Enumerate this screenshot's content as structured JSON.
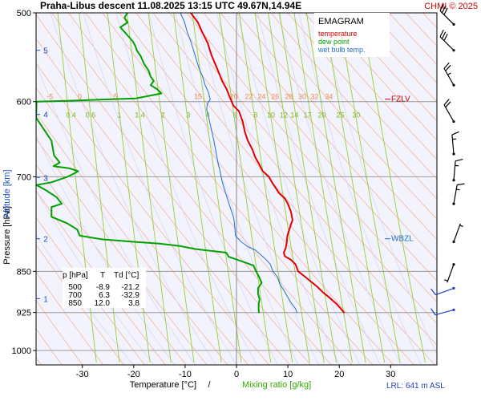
{
  "header": {
    "title": "Praha-Libus   descent   11.08.2025 13:15 UTC  49.67N,14.94E",
    "copyright": "CHMI © 2025"
  },
  "legend": {
    "title": "EMAGRAM",
    "items": [
      {
        "label": "temperature",
        "color": "#e00000"
      },
      {
        "label": "dew point",
        "color": "#00a000"
      },
      {
        "label": "wet bulb temp.",
        "color": "#1f6fd0"
      }
    ]
  },
  "levels": {
    "FZLV": {
      "label": "FZLV",
      "pressure_hpa": 597
    },
    "WBZL": {
      "label": "WBZL",
      "pressure_hpa": 795
    }
  },
  "table": {
    "headers": [
      "p [hPa]",
      "T",
      "Td [°C]"
    ],
    "rows": [
      [
        "500",
        "-8.9",
        "-21.2"
      ],
      [
        "700",
        "6.3",
        "-32.9"
      ],
      [
        "850",
        "12.0",
        "3.8"
      ]
    ]
  },
  "lrl": "LRL: 641 m ASL",
  "colors": {
    "plot_bg": "#f3f3fd",
    "temperature": "#e00000",
    "dewpoint": "#00a000",
    "wetbulb": "#1f6fd0",
    "dry_adiabat": "#f4a37a",
    "mixing_ratio": "#99cc33",
    "isotherm": "#cccccc",
    "isobar": "#999999"
  },
  "chart_data": {
    "type": "line",
    "xlabel": "Temperature [°C]",
    "xlabel_extra": "Mixing ratio [g/kg]",
    "ylabel": "Pressure [hPa]",
    "ylabel_extra": "Altitude [km]",
    "xlim": [
      -39,
      39
    ],
    "ylim": [
      1030,
      500
    ],
    "y_scale": "log",
    "x_ticks": [
      -30,
      -20,
      -10,
      0,
      10,
      20,
      30
    ],
    "pressure_ticks": [
      500,
      600,
      700,
      850,
      925,
      1000
    ],
    "altitude_ticks": [
      {
        "km": 1,
        "p": 899
      },
      {
        "km": 2,
        "p": 795
      },
      {
        "km": 3,
        "p": 701
      },
      {
        "km": 4,
        "p": 616
      },
      {
        "km": 5,
        "p": 540
      }
    ],
    "dry_adiabat_labels": [
      {
        "label": "-5",
        "x": -36.3
      },
      {
        "label": "0",
        "x": -30.5
      },
      {
        "label": "5",
        "x": -23.5
      },
      {
        "label": "15",
        "x": -7.5
      },
      {
        "label": "20",
        "x": -0.5
      },
      {
        "label": "22",
        "x": 2.4
      },
      {
        "label": "24",
        "x": 4.9
      },
      {
        "label": "26",
        "x": 7.5
      },
      {
        "label": "28",
        "x": 10.2
      },
      {
        "label": "30",
        "x": 12.8
      },
      {
        "label": "32",
        "x": 15.2
      },
      {
        "label": "34",
        "x": 18
      }
    ],
    "mixing_ratio_labels": [
      {
        "label": "0.4",
        "x": -32.2
      },
      {
        "label": "0.6",
        "x": -28.4
      },
      {
        "label": "1",
        "x": -22.8
      },
      {
        "label": "1.4",
        "x": -18.8
      },
      {
        "label": "2",
        "x": -14.3
      },
      {
        "label": "3",
        "x": -9.4
      },
      {
        "label": "4",
        "x": -5.6
      },
      {
        "label": "6",
        "x": -0.3
      },
      {
        "label": "8",
        "x": 3.7
      },
      {
        "label": "10",
        "x": 6.7
      },
      {
        "label": "12",
        "x": 9.2
      },
      {
        "label": "14",
        "x": 11.3
      },
      {
        "label": "17",
        "x": 13.8
      },
      {
        "label": "20",
        "x": 16.6
      },
      {
        "label": "25",
        "x": 20.2
      },
      {
        "label": "30",
        "x": 23.3
      }
    ],
    "series": [
      {
        "name": "temperature",
        "points": [
          [
            -8.9,
            500
          ],
          [
            -7.5,
            510
          ],
          [
            -6.7,
            520
          ],
          [
            -5.6,
            532
          ],
          [
            -4.9,
            545
          ],
          [
            -3.8,
            560
          ],
          [
            -2.8,
            575
          ],
          [
            -1.9,
            585
          ],
          [
            -1.4,
            593
          ],
          [
            -0.6,
            605
          ],
          [
            0.5,
            612
          ],
          [
            1.2,
            625
          ],
          [
            1.6,
            638
          ],
          [
            2.2,
            650
          ],
          [
            3.1,
            662
          ],
          [
            3.6,
            672
          ],
          [
            4.4,
            682
          ],
          [
            5.1,
            692
          ],
          [
            6.3,
            700
          ],
          [
            6.9,
            708
          ],
          [
            7.6,
            716
          ],
          [
            8.3,
            724
          ],
          [
            9.4,
            732
          ],
          [
            10.0,
            740
          ],
          [
            10.6,
            752
          ],
          [
            10.9,
            765
          ],
          [
            10.6,
            772
          ],
          [
            10.3,
            780
          ],
          [
            9.9,
            790
          ],
          [
            9.8,
            800
          ],
          [
            9.6,
            810
          ],
          [
            9.2,
            818
          ],
          [
            9.4,
            824
          ],
          [
            10.6,
            830
          ],
          [
            11.5,
            838
          ],
          [
            12.0,
            850
          ],
          [
            13.4,
            860
          ],
          [
            14.5,
            868
          ],
          [
            15.8,
            878
          ],
          [
            16.9,
            888
          ],
          [
            18.2,
            898
          ],
          [
            19.6,
            910
          ],
          [
            20.5,
            920
          ],
          [
            21.0,
            926
          ]
        ]
      },
      {
        "name": "dew point",
        "points": [
          [
            -21.2,
            500
          ],
          [
            -21.8,
            505
          ],
          [
            -21.2,
            510
          ],
          [
            -22.6,
            515
          ],
          [
            -21.8,
            520
          ],
          [
            -21.0,
            525
          ],
          [
            -20.2,
            530
          ],
          [
            -19.7,
            535
          ],
          [
            -19.4,
            540
          ],
          [
            -18.6,
            547
          ],
          [
            -18.0,
            555
          ],
          [
            -17.1,
            563
          ],
          [
            -16.7,
            570
          ],
          [
            -16.1,
            575
          ],
          [
            -16.7,
            580
          ],
          [
            -15.4,
            585
          ],
          [
            -14.6,
            590
          ],
          [
            -19.6,
            596
          ],
          [
            -33,
            599
          ],
          [
            -38.9,
            600
          ],
          [
            -39,
            620
          ],
          [
            -36,
            650
          ],
          [
            -35.5,
            670
          ],
          [
            -34.4,
            680
          ],
          [
            -35.6,
            685
          ],
          [
            -32.5,
            688
          ],
          [
            -30.8,
            692
          ],
          [
            -31.5,
            695
          ],
          [
            -32.9,
            700
          ],
          [
            -36,
            708
          ],
          [
            -38.9,
            712
          ],
          [
            -37,
            720
          ],
          [
            -35,
            730
          ],
          [
            -34,
            740
          ],
          [
            -36,
            745
          ],
          [
            -36,
            760
          ],
          [
            -33,
            770
          ],
          [
            -31,
            780
          ],
          [
            -30.5,
            790
          ],
          [
            -26,
            796
          ],
          [
            -20,
            800
          ],
          [
            -15,
            803
          ],
          [
            -11,
            807
          ],
          [
            -8,
            812
          ],
          [
            -2,
            818
          ],
          [
            -1.5,
            825
          ],
          [
            0.2,
            830
          ],
          [
            3.3,
            840
          ],
          [
            3.8,
            850
          ],
          [
            4.4,
            860
          ],
          [
            4.9,
            870
          ],
          [
            4.2,
            880
          ],
          [
            4.2,
            890
          ],
          [
            4.5,
            900
          ],
          [
            4.3,
            910
          ],
          [
            4.3,
            920
          ],
          [
            4.4,
            926
          ]
        ]
      },
      {
        "name": "wet bulb temp.",
        "points": [
          [
            -10.9,
            500
          ],
          [
            -10.1,
            510
          ],
          [
            -9.6,
            520
          ],
          [
            -8.9,
            530
          ],
          [
            -8.1,
            545
          ],
          [
            -7.3,
            560
          ],
          [
            -6.6,
            570
          ],
          [
            -6.1,
            580
          ],
          [
            -5.5,
            588
          ],
          [
            -5.1,
            597
          ],
          [
            -5.7,
            603
          ],
          [
            -5.8,
            610
          ],
          [
            -5.4,
            620
          ],
          [
            -4.9,
            635
          ],
          [
            -4.4,
            650
          ],
          [
            -4.0,
            665
          ],
          [
            -3.6,
            680
          ],
          [
            -3.2,
            692
          ],
          [
            -3.0,
            700
          ],
          [
            -2.6,
            712
          ],
          [
            -2.1,
            724
          ],
          [
            -1.6,
            736
          ],
          [
            -1.1,
            748
          ],
          [
            -0.6,
            760
          ],
          [
            -0.4,
            770
          ],
          [
            -0.3,
            780
          ],
          [
            -0.2,
            790
          ],
          [
            0.9,
            800
          ],
          [
            2.2,
            808
          ],
          [
            3.7,
            814
          ],
          [
            4.5,
            820
          ],
          [
            5.8,
            830
          ],
          [
            6.6,
            838
          ],
          [
            7.1,
            850
          ],
          [
            8.0,
            860
          ],
          [
            8.4,
            872
          ],
          [
            9.1,
            882
          ],
          [
            9.7,
            892
          ],
          [
            10.5,
            905
          ],
          [
            11.5,
            918
          ],
          [
            11.8,
            926
          ]
        ]
      }
    ],
    "wind_barbs": [
      {
        "p": 512,
        "dir_deg": 315,
        "speed_kt": 30
      },
      {
        "p": 540,
        "dir_deg": 315,
        "speed_kt": 30
      },
      {
        "p": 580,
        "dir_deg": 330,
        "speed_kt": 25
      },
      {
        "p": 625,
        "dir_deg": 330,
        "speed_kt": 20
      },
      {
        "p": 668,
        "dir_deg": 355,
        "speed_kt": 15
      },
      {
        "p": 705,
        "dir_deg": 5,
        "speed_kt": 15
      },
      {
        "p": 740,
        "dir_deg": 10,
        "speed_kt": 15
      },
      {
        "p": 800,
        "dir_deg": 20,
        "speed_kt": 5
      },
      {
        "p": 838,
        "dir_deg": 200,
        "speed_kt": 5
      },
      {
        "p": 880,
        "dir_deg": 250,
        "speed_kt": 10
      },
      {
        "p": 920,
        "dir_deg": 255,
        "speed_kt": 10
      }
    ]
  }
}
